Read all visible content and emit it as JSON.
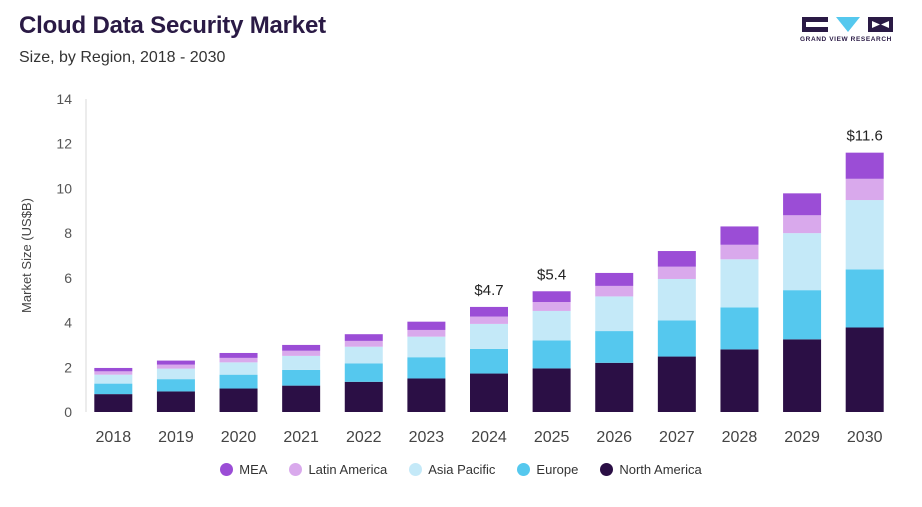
{
  "header": {
    "title": "Cloud Data Security Market",
    "subtitle": "Size, by Region, 2018 - 2030"
  },
  "logo": {
    "text": "GRAND VIEW RESEARCH"
  },
  "colors": {
    "North America": "#2b0f45",
    "Europe": "#55c8ee",
    "Asia Pacific": "#c4e9f8",
    "Latin America": "#d9a9ec",
    "MEA": "#9b4dd6"
  },
  "chart_data": {
    "type": "bar",
    "stacked": true,
    "categories": [
      "2018",
      "2019",
      "2020",
      "2021",
      "2022",
      "2023",
      "2024",
      "2025",
      "2026",
      "2027",
      "2028",
      "2029",
      "2030"
    ],
    "series": [
      {
        "name": "North America",
        "values": [
          0.8,
          0.92,
          1.05,
          1.18,
          1.35,
          1.5,
          1.72,
          1.95,
          2.2,
          2.48,
          2.8,
          3.25,
          3.78
        ]
      },
      {
        "name": "Europe",
        "values": [
          0.47,
          0.55,
          0.62,
          0.7,
          0.82,
          0.95,
          1.1,
          1.25,
          1.42,
          1.62,
          1.88,
          2.2,
          2.6
        ]
      },
      {
        "name": "Asia Pacific",
        "values": [
          0.4,
          0.47,
          0.55,
          0.63,
          0.75,
          0.92,
          1.12,
          1.32,
          1.55,
          1.85,
          2.15,
          2.55,
          3.1
        ]
      },
      {
        "name": "Latin America",
        "values": [
          0.15,
          0.18,
          0.2,
          0.23,
          0.26,
          0.3,
          0.33,
          0.4,
          0.47,
          0.55,
          0.65,
          0.8,
          0.95
        ]
      },
      {
        "name": "MEA",
        "values": [
          0.15,
          0.18,
          0.22,
          0.26,
          0.3,
          0.37,
          0.43,
          0.48,
          0.58,
          0.7,
          0.82,
          0.98,
          1.17
        ]
      }
    ],
    "legend_order": [
      "MEA",
      "Latin America",
      "Asia Pacific",
      "Europe",
      "North America"
    ],
    "annotations": [
      {
        "category": "2024",
        "text": "$4.7"
      },
      {
        "category": "2025",
        "text": "$5.4"
      },
      {
        "category": "2030",
        "text": "$11.6"
      }
    ],
    "ylabel": "Market Size (US$B)",
    "ylim": [
      0,
      14
    ],
    "yticks": [
      0,
      2,
      4,
      6,
      8,
      10,
      12,
      14
    ],
    "grid": false,
    "legend_position": "bottom"
  }
}
